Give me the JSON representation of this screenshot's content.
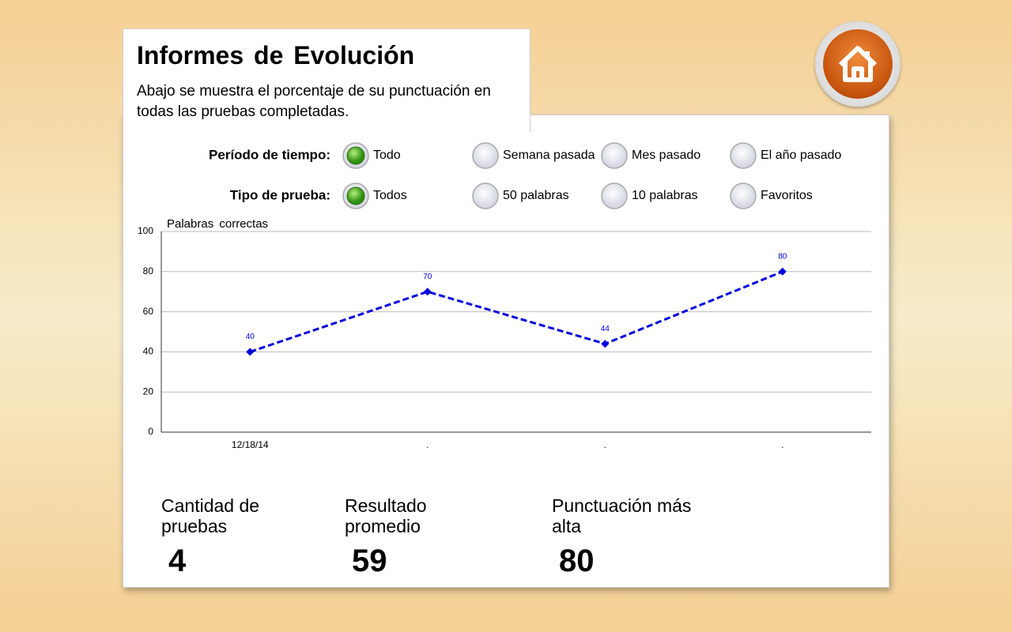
{
  "header": {
    "title": "Informes de Evolución",
    "description": "Abajo se muestra el porcentaje de su punctuación en todas las pruebas completadas."
  },
  "filters": [
    {
      "label": "Período de tiempo:",
      "options": [
        "Todo",
        "Semana pasada",
        "Mes pasado",
        "El año pasado"
      ],
      "selected": 0
    },
    {
      "label": "Tipo de prueba:",
      "options": [
        "Todos",
        "50 palabras",
        "10 palabras",
        "Favoritos"
      ],
      "selected": 0
    }
  ],
  "chart_data": {
    "type": "line",
    "y_label": "Palabras correctas",
    "categories": [
      "12/18/14",
      ".",
      ".",
      "."
    ],
    "values": [
      40,
      70,
      44,
      80
    ],
    "color": "#0000dd",
    "ylim": [
      0,
      100
    ],
    "yticks": [
      0,
      20,
      40,
      60,
      80,
      100
    ],
    "grid": true
  },
  "stats": [
    {
      "label": "Cantidad de pruebas",
      "value": 4
    },
    {
      "label": "Resultado promedio",
      "value": 59
    },
    {
      "label": "Punctuación más alta",
      "value": 80
    }
  ]
}
